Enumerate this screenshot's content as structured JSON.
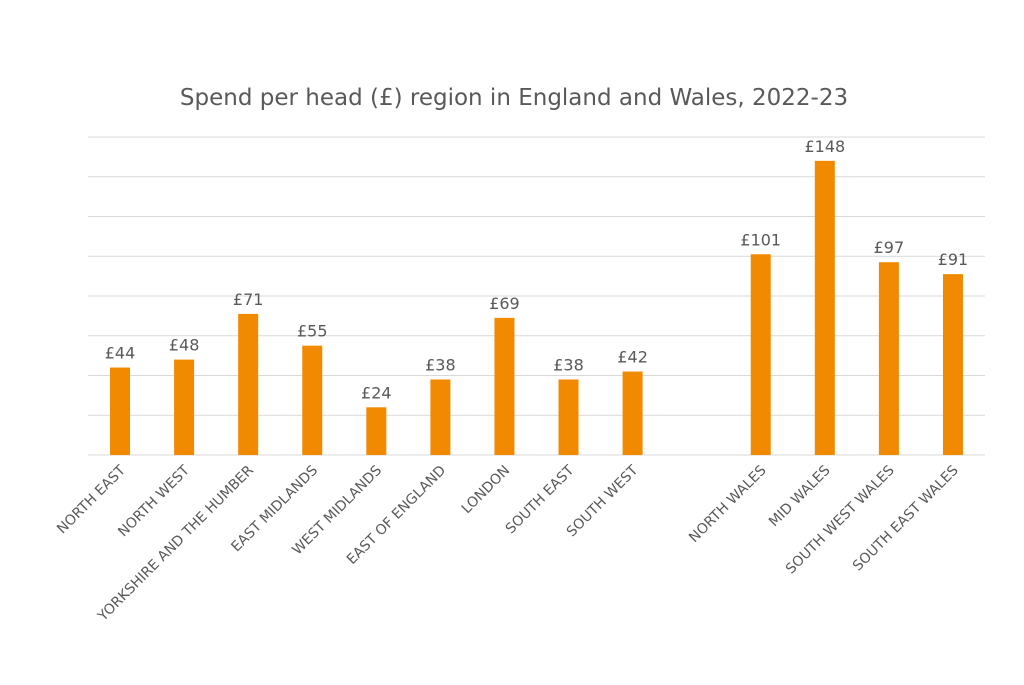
{
  "chart_data": {
    "type": "bar",
    "title": "Spend per head (£) region in England and Wales, 2022-23",
    "xlabel": "",
    "ylabel": "",
    "ylim": [
      0,
      160
    ],
    "grid": true,
    "legend": "none",
    "value_prefix": "£",
    "bar_color": "#F18A00",
    "categories": [
      "NORTH EAST",
      "NORTH WEST",
      "YORKSHIRE AND THE HUMBER",
      "EAST MIDLANDS",
      "WEST MIDLANDS",
      "EAST OF ENGLAND",
      "LONDON",
      "SOUTH EAST",
      "SOUTH WEST",
      "",
      "NORTH WALES",
      "MID WALES",
      "SOUTH WEST WALES",
      "SOUTH EAST WALES"
    ],
    "values": [
      44,
      48,
      71,
      55,
      24,
      38,
      69,
      38,
      42,
      null,
      101,
      148,
      97,
      91
    ]
  }
}
